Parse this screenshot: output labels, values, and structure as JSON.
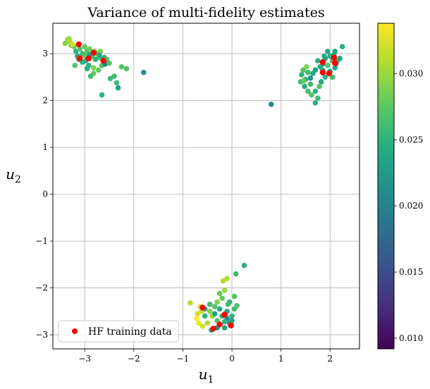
{
  "chart_data": {
    "type": "scatter",
    "title": "Variance of multi-fidelity estimates",
    "xlabel": "u",
    "xlabel_sub": "1",
    "ylabel": "u",
    "ylabel_sub": "2",
    "xlim": [
      -3.65,
      2.6
    ],
    "ylim": [
      -3.3,
      3.65
    ],
    "xticks": [
      -3,
      -2,
      -1,
      0,
      1,
      2
    ],
    "xtick_labels": [
      "−3",
      "−2",
      "−1",
      "0",
      "1",
      "2"
    ],
    "yticks": [
      -3,
      -2,
      -1,
      0,
      1,
      2,
      3
    ],
    "ytick_labels": [
      "−3",
      "−2",
      "−1",
      "0",
      "1",
      "2",
      "3"
    ],
    "grid": true,
    "legend_position": "lower left",
    "colorbar": {
      "range": [
        0.0092,
        0.0338
      ],
      "ticks": [
        0.01,
        0.015,
        0.02,
        0.025,
        0.03
      ],
      "tick_labels": [
        "0.010",
        "0.015",
        "0.020",
        "0.025",
        "0.030"
      ],
      "colormap": "viridis"
    },
    "series": [
      {
        "name": "",
        "kind": "variance",
        "points": [
          [
            -3.4,
            3.22,
            0.029
          ],
          [
            -3.35,
            3.3,
            0.03
          ],
          [
            -3.3,
            3.25,
            0.031
          ],
          [
            -3.28,
            3.18,
            0.029
          ],
          [
            -3.22,
            3.15,
            0.028
          ],
          [
            -3.18,
            3.05,
            0.025
          ],
          [
            -3.15,
            2.95,
            0.024
          ],
          [
            -3.1,
            3.1,
            0.027
          ],
          [
            -3.05,
            3.0,
            0.026
          ],
          [
            -3.0,
            3.15,
            0.028
          ],
          [
            -2.98,
            2.85,
            0.024
          ],
          [
            -2.95,
            3.05,
            0.027
          ],
          [
            -2.92,
            2.75,
            0.025
          ],
          [
            -2.9,
            3.1,
            0.028
          ],
          [
            -2.85,
            2.95,
            0.026
          ],
          [
            -2.82,
            2.7,
            0.029
          ],
          [
            -2.8,
            3.05,
            0.028
          ],
          [
            -2.78,
            2.88,
            0.025
          ],
          [
            -2.75,
            3.0,
            0.027
          ],
          [
            -2.72,
            2.65,
            0.028
          ],
          [
            -2.7,
            2.92,
            0.026
          ],
          [
            -2.68,
            3.05,
            0.029
          ],
          [
            -2.65,
            2.75,
            0.027
          ],
          [
            -2.6,
            2.92,
            0.025
          ],
          [
            -2.58,
            2.78,
            0.02
          ],
          [
            -2.55,
            2.88,
            0.027
          ],
          [
            -2.5,
            2.8,
            0.027
          ],
          [
            -2.48,
            2.47,
            0.026
          ],
          [
            -2.4,
            2.52,
            0.026
          ],
          [
            -2.35,
            2.38,
            0.026
          ],
          [
            -2.32,
            2.27,
            0.023
          ],
          [
            -2.25,
            2.72,
            0.027
          ],
          [
            -2.15,
            2.68,
            0.027
          ],
          [
            -2.65,
            2.12,
            0.025
          ],
          [
            -2.82,
            2.58,
            0.028
          ],
          [
            -2.88,
            2.52,
            0.026
          ],
          [
            -3.05,
            2.82,
            0.025
          ],
          [
            -3.2,
            2.75,
            0.027
          ],
          [
            -3.12,
            2.88,
            0.025
          ],
          [
            -2.95,
            2.68,
            0.025
          ],
          [
            -3.25,
            3.2,
            0.032
          ],
          [
            -3.32,
            3.32,
            0.03
          ],
          [
            -3.0,
            2.96,
            0.027
          ],
          [
            -2.7,
            2.97,
            0.024
          ],
          [
            -2.9,
            2.98,
            0.023
          ],
          [
            -1.8,
            2.6,
            0.021
          ],
          [
            0.8,
            1.92,
            0.021
          ],
          [
            2.25,
            3.15,
            0.025
          ],
          [
            2.1,
            3.05,
            0.024
          ],
          [
            2.0,
            2.95,
            0.025
          ],
          [
            1.95,
            3.05,
            0.024
          ],
          [
            2.05,
            2.85,
            0.027
          ],
          [
            1.9,
            2.9,
            0.023
          ],
          [
            1.85,
            2.78,
            0.022
          ],
          [
            1.8,
            2.72,
            0.024
          ],
          [
            1.75,
            2.85,
            0.025
          ],
          [
            1.7,
            2.65,
            0.023
          ],
          [
            1.65,
            2.58,
            0.024
          ],
          [
            1.6,
            2.48,
            0.022
          ],
          [
            1.55,
            2.6,
            0.026
          ],
          [
            1.5,
            2.45,
            0.025
          ],
          [
            1.45,
            2.65,
            0.027
          ],
          [
            1.42,
            2.55,
            0.025
          ],
          [
            1.4,
            2.4,
            0.026
          ],
          [
            1.48,
            2.3,
            0.024
          ],
          [
            1.55,
            2.2,
            0.026
          ],
          [
            1.62,
            2.12,
            0.027
          ],
          [
            1.7,
            2.2,
            0.025
          ],
          [
            1.78,
            2.3,
            0.027
          ],
          [
            1.82,
            2.4,
            0.024
          ],
          [
            1.75,
            2.05,
            0.026
          ],
          [
            1.7,
            1.95,
            0.025
          ],
          [
            1.9,
            2.5,
            0.025
          ],
          [
            2.0,
            2.62,
            0.023
          ],
          [
            2.1,
            2.7,
            0.024
          ],
          [
            2.15,
            2.85,
            0.025
          ],
          [
            2.2,
            2.9,
            0.024
          ],
          [
            1.95,
            2.75,
            0.027
          ],
          [
            2.05,
            2.5,
            0.026
          ],
          [
            1.85,
            2.65,
            0.025
          ],
          [
            1.6,
            2.35,
            0.026
          ],
          [
            1.52,
            2.72,
            0.029
          ],
          [
            1.46,
            2.42,
            0.028
          ],
          [
            1.88,
            2.95,
            0.024
          ],
          [
            2.08,
            2.98,
            0.024
          ],
          [
            2.12,
            2.78,
            0.022
          ],
          [
            0.25,
            -1.52,
            0.025
          ],
          [
            0.08,
            -1.7,
            0.026
          ],
          [
            -0.1,
            -1.8,
            0.031
          ],
          [
            -0.18,
            -1.85,
            0.031
          ],
          [
            -0.25,
            -2.12,
            0.028
          ],
          [
            -0.15,
            -2.05,
            0.03
          ],
          [
            0.05,
            -2.18,
            0.027
          ],
          [
            -0.05,
            -2.3,
            0.025
          ],
          [
            -0.2,
            -2.22,
            0.028
          ],
          [
            -0.35,
            -2.4,
            0.027
          ],
          [
            -0.45,
            -2.35,
            0.026
          ],
          [
            -0.55,
            -2.45,
            0.024
          ],
          [
            -0.62,
            -2.5,
            0.032
          ],
          [
            -0.7,
            -2.55,
            0.032
          ],
          [
            -0.72,
            -2.65,
            0.034
          ],
          [
            -0.68,
            -2.75,
            0.033
          ],
          [
            -0.6,
            -2.82,
            0.032
          ],
          [
            -0.5,
            -2.75,
            0.031
          ],
          [
            -0.4,
            -2.6,
            0.03
          ],
          [
            -0.3,
            -2.7,
            0.027
          ],
          [
            -0.2,
            -2.6,
            0.024
          ],
          [
            -0.1,
            -2.5,
            0.024
          ],
          [
            0.0,
            -2.6,
            0.025
          ],
          [
            0.05,
            -2.45,
            0.026
          ],
          [
            0.1,
            -2.38,
            0.027
          ],
          [
            -0.05,
            -2.75,
            0.022
          ],
          [
            -0.15,
            -2.85,
            0.023
          ],
          [
            -0.3,
            -2.85,
            0.022
          ],
          [
            -0.42,
            -2.9,
            0.024
          ],
          [
            -0.55,
            -2.6,
            0.025
          ],
          [
            -0.85,
            -2.32,
            0.031
          ],
          [
            -0.35,
            -2.55,
            0.023
          ],
          [
            -0.25,
            -2.45,
            0.024
          ],
          [
            -0.1,
            -2.65,
            0.021
          ],
          [
            0.0,
            -2.7,
            0.023
          ],
          [
            -0.45,
            -2.5,
            0.029
          ],
          [
            -0.65,
            -2.4,
            0.033
          ],
          [
            -0.08,
            -2.35,
            0.026
          ],
          [
            -0.3,
            -2.3,
            0.029
          ],
          [
            -0.15,
            -2.72,
            0.025
          ]
        ]
      },
      {
        "name": "HF training data",
        "kind": "training",
        "color": "#ff0000",
        "points": [
          [
            -3.12,
            3.2
          ],
          [
            -2.82,
            3.02
          ],
          [
            -2.62,
            2.85
          ],
          [
            -3.1,
            2.9
          ],
          [
            -2.92,
            2.9
          ],
          [
            1.85,
            2.82
          ],
          [
            1.98,
            2.58
          ],
          [
            2.08,
            2.92
          ],
          [
            1.85,
            2.6
          ],
          [
            2.1,
            2.8
          ],
          [
            -0.6,
            -2.42
          ],
          [
            -0.15,
            -2.57
          ],
          [
            -0.38,
            -2.87
          ],
          [
            -0.25,
            -2.78
          ],
          [
            -0.02,
            -2.8
          ]
        ]
      }
    ]
  }
}
